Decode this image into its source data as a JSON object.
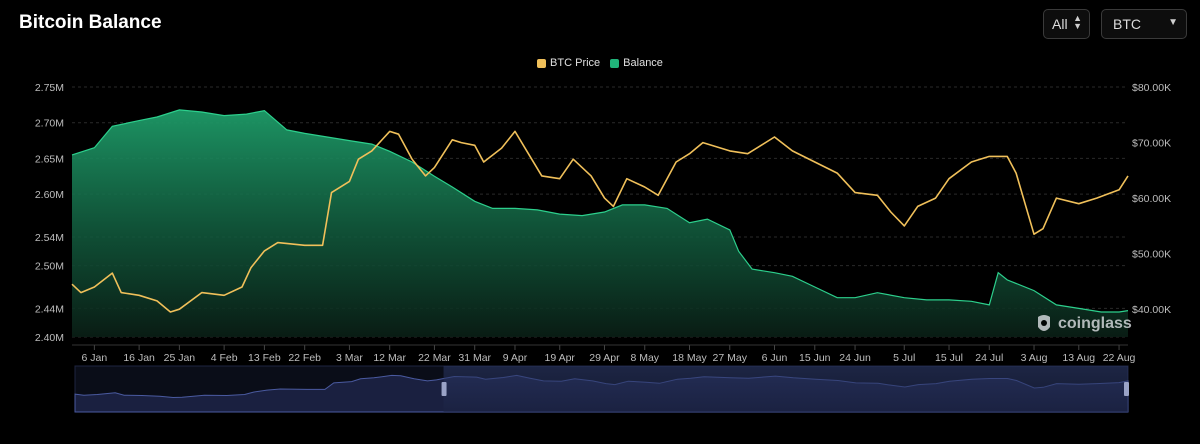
{
  "header": {
    "title": "Bitcoin Balance",
    "range_select": "All",
    "coin_select": "BTC"
  },
  "legend": [
    {
      "name": "BTC Price",
      "color": "#f0c05a"
    },
    {
      "name": "Balance",
      "color": "#20b47a"
    }
  ],
  "watermark": "coinglass",
  "chart_data": {
    "type": "line",
    "title": "Bitcoin Balance",
    "x_ticks": [
      "6 Jan",
      "16 Jan",
      "25 Jan",
      "4 Feb",
      "13 Feb",
      "22 Feb",
      "3 Mar",
      "12 Mar",
      "22 Mar",
      "31 Mar",
      "9 Apr",
      "19 Apr",
      "29 Apr",
      "8 May",
      "18 May",
      "27 May",
      "6 Jun",
      "15 Jun",
      "24 Jun",
      "5 Jul",
      "15 Jul",
      "24 Jul",
      "3 Aug",
      "13 Aug",
      "22 Aug"
    ],
    "y_left_ticks": [
      "2.40M",
      "2.44M",
      "2.50M",
      "2.54M",
      "2.60M",
      "2.65M",
      "2.70M",
      "2.75M"
    ],
    "y_right_ticks": [
      "$40.00K",
      "$50.00K",
      "$60.00K",
      "$70.00K",
      "$80.00K"
    ],
    "y_left_range": [
      2.4,
      2.75
    ],
    "y_right_range": [
      35,
      80
    ],
    "grid": true,
    "legend_position": "top-center",
    "series": [
      {
        "name": "Balance",
        "axis": "left",
        "kind": "area",
        "color": "#20b47a",
        "x": [
          "1 Jan",
          "6 Jan",
          "10 Jan",
          "16 Jan",
          "20 Jan",
          "25 Jan",
          "30 Jan",
          "4 Feb",
          "9 Feb",
          "13 Feb",
          "18 Feb",
          "22 Feb",
          "27 Feb",
          "3 Mar",
          "8 Mar",
          "12 Mar",
          "17 Mar",
          "22 Mar",
          "26 Mar",
          "31 Mar",
          "4 Apr",
          "9 Apr",
          "14 Apr",
          "19 Apr",
          "24 Apr",
          "29 Apr",
          "3 May",
          "8 May",
          "13 May",
          "18 May",
          "22 May",
          "27 May",
          "29 May",
          "1 Jun",
          "6 Jun",
          "10 Jun",
          "15 Jun",
          "20 Jun",
          "24 Jun",
          "29 Jun",
          "5 Jul",
          "10 Jul",
          "15 Jul",
          "20 Jul",
          "24 Jul",
          "26 Jul",
          "28 Jul",
          "3 Aug",
          "8 Aug",
          "13 Aug",
          "18 Aug",
          "22 Aug",
          "24 Aug"
        ],
        "values": [
          2.655,
          2.665,
          2.695,
          2.703,
          2.708,
          2.718,
          2.715,
          2.71,
          2.712,
          2.717,
          2.69,
          2.685,
          2.68,
          2.675,
          2.67,
          2.66,
          2.645,
          2.625,
          2.61,
          2.59,
          2.58,
          2.58,
          2.578,
          2.572,
          2.57,
          2.575,
          2.585,
          2.585,
          2.58,
          2.56,
          2.565,
          2.55,
          2.52,
          2.495,
          2.49,
          2.485,
          2.47,
          2.455,
          2.455,
          2.462,
          2.455,
          2.452,
          2.452,
          2.45,
          2.445,
          2.49,
          2.48,
          2.465,
          2.445,
          2.44,
          2.435,
          2.435,
          2.437
        ]
      },
      {
        "name": "BTC Price",
        "axis": "right",
        "kind": "line",
        "color": "#f0c05a",
        "x": [
          "1 Jan",
          "3 Jan",
          "6 Jan",
          "10 Jan",
          "12 Jan",
          "16 Jan",
          "20 Jan",
          "23 Jan",
          "25 Jan",
          "30 Jan",
          "4 Feb",
          "8 Feb",
          "10 Feb",
          "13 Feb",
          "16 Feb",
          "22 Feb",
          "26 Feb",
          "28 Feb",
          "3 Mar",
          "5 Mar",
          "8 Mar",
          "12 Mar",
          "14 Mar",
          "17 Mar",
          "20 Mar",
          "22 Mar",
          "26 Mar",
          "28 Mar",
          "31 Mar",
          "2 Apr",
          "6 Apr",
          "9 Apr",
          "12 Apr",
          "15 Apr",
          "19 Apr",
          "22 Apr",
          "26 Apr",
          "29 Apr",
          "1 May",
          "4 May",
          "8 May",
          "11 May",
          "15 May",
          "18 May",
          "21 May",
          "27 May",
          "31 May",
          "6 Jun",
          "10 Jun",
          "15 Jun",
          "20 Jun",
          "24 Jun",
          "29 Jun",
          "2 Jul",
          "5 Jul",
          "8 Jul",
          "12 Jul",
          "15 Jul",
          "20 Jul",
          "24 Jul",
          "28 Jul",
          "30 Jul",
          "3 Aug",
          "5 Aug",
          "8 Aug",
          "13 Aug",
          "17 Aug",
          "22 Aug",
          "24 Aug"
        ],
        "values": [
          44.5,
          43.0,
          44.0,
          46.5,
          43.0,
          42.5,
          41.5,
          39.5,
          40.0,
          43.0,
          42.5,
          44.0,
          47.5,
          50.5,
          52.0,
          51.5,
          51.5,
          61.0,
          63.0,
          67.0,
          68.5,
          72.0,
          71.5,
          67.0,
          64.0,
          65.5,
          70.5,
          70.0,
          69.5,
          66.5,
          69.0,
          72.0,
          68.0,
          64.0,
          63.5,
          67.0,
          64.0,
          60.0,
          58.5,
          63.5,
          62.0,
          60.5,
          66.5,
          68.0,
          70.0,
          68.5,
          68.0,
          71.0,
          68.5,
          66.5,
          64.5,
          61.0,
          60.5,
          57.5,
          55.0,
          58.5,
          60.0,
          63.5,
          66.5,
          67.5,
          67.5,
          64.5,
          53.5,
          54.5,
          60.0,
          59.0,
          60.0,
          61.5,
          64.0
        ]
      }
    ]
  },
  "navigator": {
    "selection_start": 0.35,
    "selection_end": 1.0
  }
}
